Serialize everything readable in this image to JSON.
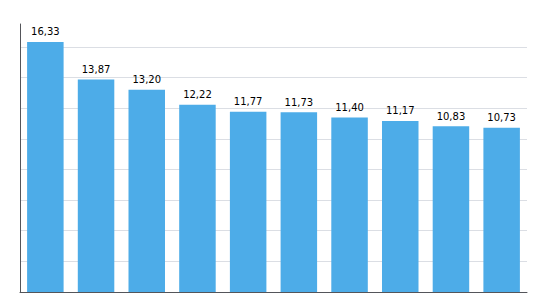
{
  "chart_data": {
    "type": "bar",
    "categories": [
      null,
      null,
      null,
      null,
      null,
      null,
      null,
      null,
      null,
      null
    ],
    "values": [
      16.33,
      13.87,
      13.2,
      12.22,
      11.77,
      11.73,
      11.4,
      11.17,
      10.83,
      10.73
    ],
    "value_labels": [
      "16,33",
      "13,87",
      "13,20",
      "12,22",
      "11,77",
      "11,73",
      "11,40",
      "11,17",
      "10,83",
      "10,73"
    ],
    "color": "#4DACE8",
    "ylim": [
      0,
      17.5
    ],
    "yticks": [
      0,
      2,
      4,
      6,
      8,
      10,
      12,
      14,
      16
    ],
    "grid": true,
    "data_labels": true,
    "tick_labels": false
  }
}
